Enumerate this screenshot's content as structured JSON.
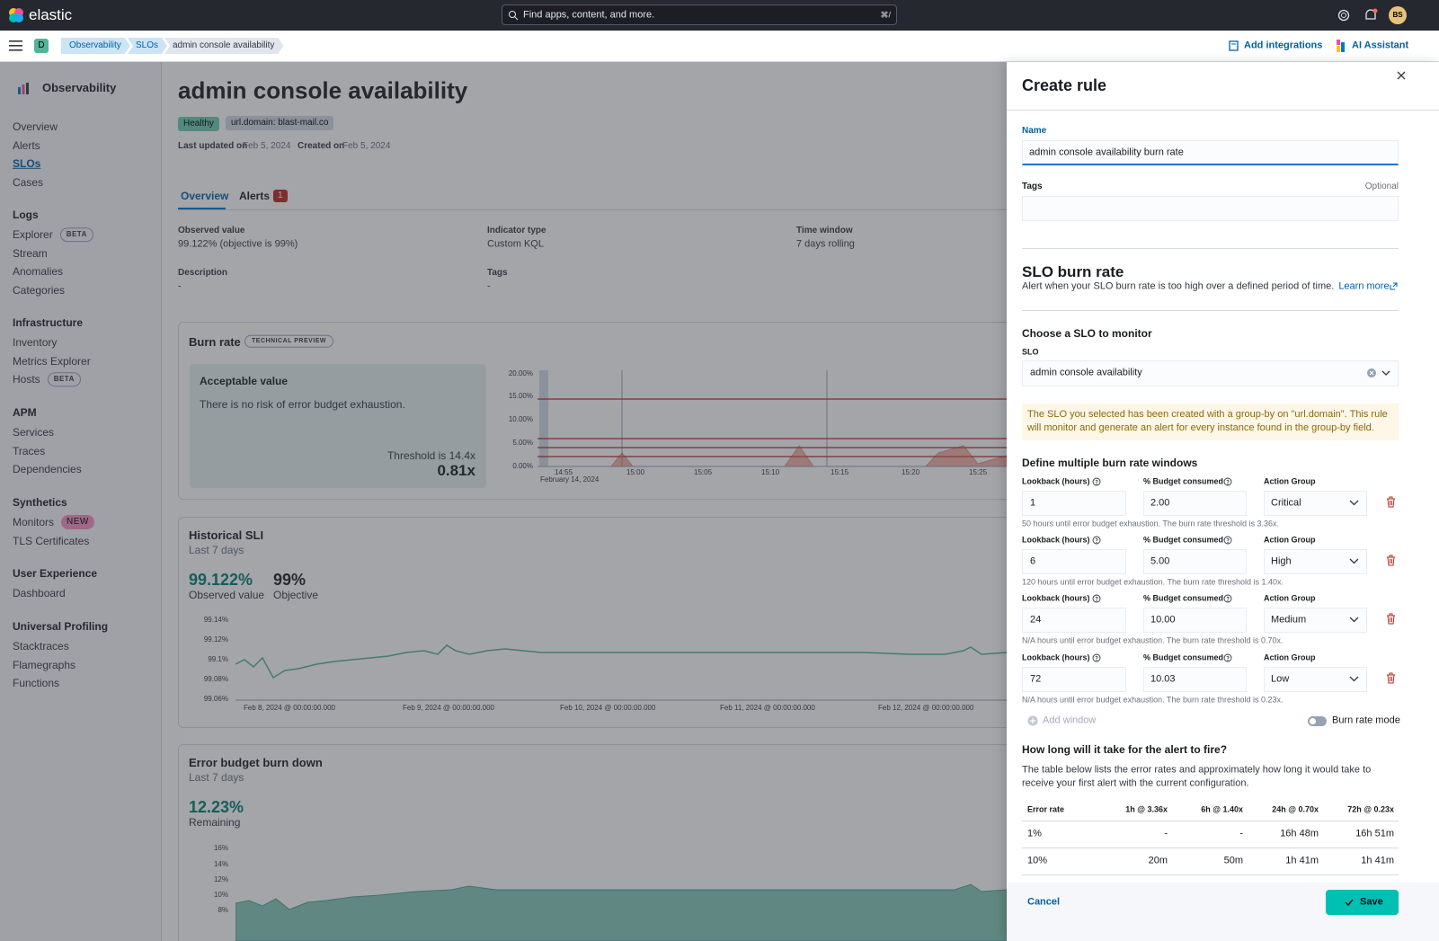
{
  "header": {
    "brand": "elastic",
    "search_placeholder": "Find apps, content, and more.",
    "search_shortcut": "⌘/",
    "avatar": "BS"
  },
  "breadcrumbs": {
    "space": "D",
    "items": [
      "Observability",
      "SLOs",
      "admin console availability"
    ],
    "actions": [
      "Add integrations",
      "AI Assistant"
    ]
  },
  "sidebar": {
    "title": "Observability",
    "top": [
      "Overview",
      "Alerts",
      "SLOs",
      "Cases"
    ],
    "groups": [
      {
        "title": "Logs",
        "items": [
          {
            "label": "Explorer",
            "badge": "BETA"
          },
          {
            "label": "Stream"
          },
          {
            "label": "Anomalies"
          },
          {
            "label": "Categories"
          }
        ]
      },
      {
        "title": "Infrastructure",
        "items": [
          {
            "label": "Inventory"
          },
          {
            "label": "Metrics Explorer"
          },
          {
            "label": "Hosts",
            "badge": "BETA"
          }
        ]
      },
      {
        "title": "APM",
        "items": [
          {
            "label": "Services"
          },
          {
            "label": "Traces"
          },
          {
            "label": "Dependencies"
          }
        ]
      },
      {
        "title": "Synthetics",
        "items": [
          {
            "label": "Monitors",
            "badge": "NEW"
          },
          {
            "label": "TLS Certificates"
          }
        ]
      },
      {
        "title": "User Experience",
        "items": [
          {
            "label": "Dashboard"
          }
        ]
      },
      {
        "title": "Universal Profiling",
        "items": [
          {
            "label": "Stacktraces"
          },
          {
            "label": "Flamegraphs"
          },
          {
            "label": "Functions"
          }
        ]
      }
    ]
  },
  "page": {
    "title": "admin console availability",
    "badges": [
      "Healthy",
      "url.domain: blast-mail.co"
    ],
    "meta": [
      {
        "label": "Last updated on",
        "value": "Feb 5, 2024"
      },
      {
        "label": "Created on",
        "value": "Feb 5, 2024"
      }
    ],
    "tabs": [
      {
        "label": "Overview"
      },
      {
        "label": "Alerts",
        "count": "1"
      }
    ],
    "fields": [
      {
        "label": "Observed value",
        "value": "99.122% (objective is 99%)"
      },
      {
        "label": "Indicator type",
        "value": "Custom KQL"
      },
      {
        "label": "Time window",
        "value": "7 days rolling"
      },
      {
        "label": "Description",
        "value": "-"
      },
      {
        "label": "Tags",
        "value": "-"
      }
    ],
    "burn_rate": {
      "title": "Burn rate",
      "badge": "TECHNICAL PREVIEW",
      "card_title": "Acceptable value",
      "card_text": "There is no risk of error budget exhaustion.",
      "threshold": "Threshold is 14.4x",
      "value": "0.81x",
      "yticks": [
        "20.00%",
        "15.00%",
        "10.00%",
        "5.00%",
        "0.00%"
      ],
      "xticks": [
        "14:55",
        "15:00",
        "15:05",
        "15:10",
        "15:15",
        "15:20",
        "15:25"
      ],
      "date": "February 14, 2024"
    },
    "historical_sli": {
      "title": "Historical SLI",
      "subtitle": "Last 7 days",
      "value": "99.122%",
      "value_label": "Observed value",
      "objective": "99%",
      "objective_label": "Objective",
      "yticks": [
        "99.14%",
        "99.12%",
        "99.1%",
        "99.08%",
        "99.06%"
      ],
      "xticks": [
        "Feb 8, 2024 @ 00:00:00.000",
        "Feb 9, 2024 @ 00:00:00.000",
        "Feb 10, 2024 @ 00:00:00.000",
        "Feb 11, 2024 @ 00:00:00.000",
        "Feb 12, 2024 @ 00:00:00.000"
      ]
    },
    "error_budget": {
      "title": "Error budget burn down",
      "subtitle": "Last 7 days",
      "value": "12.23%",
      "value_label": "Remaining",
      "yticks": [
        "16%",
        "14%",
        "12%",
        "10%",
        "8%"
      ]
    }
  },
  "flyout": {
    "title": "Create rule",
    "name_label": "Name",
    "name_value": "admin console availability burn rate",
    "tags_label": "Tags",
    "optional": "Optional",
    "section_title": "SLO burn rate",
    "section_desc": "Alert when your SLO burn rate is too high over a defined period of time.",
    "learn_more": "Learn more",
    "choose_title": "Choose a SLO to monitor",
    "slo_label": "SLO",
    "slo_value": "admin console availability",
    "callout": "The SLO you selected has been created with a group-by on \"url.domain\". This rule will monitor and generate an alert for every instance found in the group-by field.",
    "windows_title": "Define multiple burn rate windows",
    "lookback_label": "Lookback (hours)",
    "budget_label": "% Budget consumed",
    "group_label": "Action Group",
    "windows": [
      {
        "lookback": "1",
        "budget": "2.00",
        "group": "Critical",
        "help": "50 hours until error budget exhaustion. The burn rate threshold is 3.36x."
      },
      {
        "lookback": "6",
        "budget": "5.00",
        "group": "High",
        "help": "120 hours until error budget exhaustion. The burn rate threshold is 1.40x."
      },
      {
        "lookback": "24",
        "budget": "10.00",
        "group": "Medium",
        "help": "N/A hours until error budget exhaustion. The burn rate threshold is 0.70x."
      },
      {
        "lookback": "72",
        "budget": "10.03",
        "group": "Low",
        "help": "N/A hours until error budget exhaustion. The burn rate threshold is 0.23x."
      }
    ],
    "add_window": "Add window",
    "burn_rate_mode": "Burn rate mode",
    "fire_title": "How long will it take for the alert to fire?",
    "fire_desc": "The table below lists the error rates and approximately how long it would take to receive your first alert with the current configuration.",
    "table": {
      "headers": [
        "Error rate",
        "1h @ 3.36x",
        "6h @ 1.40x",
        "24h @ 0.70x",
        "72h @ 0.23x"
      ],
      "rows": [
        [
          "1%",
          "-",
          "-",
          "16h 48m",
          "16h 51m"
        ],
        [
          "10%",
          "20m",
          "50m",
          "1h 41m",
          "1h 41m"
        ]
      ]
    },
    "cancel": "Cancel",
    "save": "Save"
  }
}
